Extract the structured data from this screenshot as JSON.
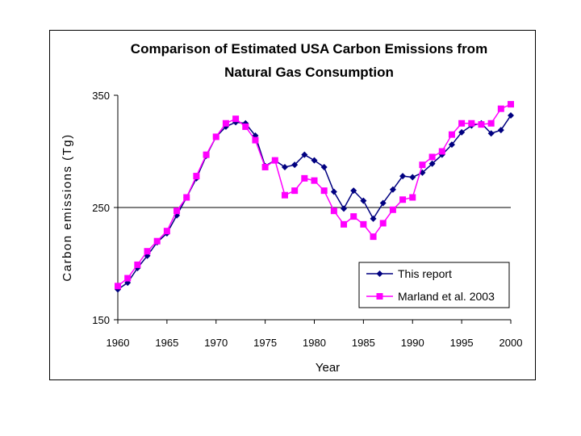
{
  "chart_data": {
    "type": "line",
    "title": [
      "Comparison of Estimated USA Carbon Emissions from",
      "Natural Gas Consumption"
    ],
    "xlabel": "Year",
    "ylabel": "Carbon emissions (Tg)",
    "xlim": [
      1960,
      2000
    ],
    "ylim": [
      150,
      350
    ],
    "x_ticks": [
      1960,
      1965,
      1970,
      1975,
      1980,
      1985,
      1990,
      1995,
      2000
    ],
    "y_ticks": [
      150,
      250,
      350
    ],
    "grid": {
      "horizontal": [
        250
      ]
    },
    "legend_position": "bottom-right",
    "x": [
      1960,
      1961,
      1962,
      1963,
      1964,
      1965,
      1966,
      1967,
      1968,
      1969,
      1970,
      1971,
      1972,
      1973,
      1974,
      1975,
      1976,
      1977,
      1978,
      1979,
      1980,
      1981,
      1982,
      1983,
      1984,
      1985,
      1986,
      1987,
      1988,
      1989,
      1990,
      1991,
      1992,
      1993,
      1994,
      1995,
      1996,
      1997,
      1998,
      1999,
      2000
    ],
    "series": [
      {
        "name": "This report",
        "color": "#000080",
        "marker": "diamond",
        "values": [
          177,
          183,
          196,
          207,
          219,
          227,
          243,
          259,
          276,
          296,
          313,
          322,
          326,
          325,
          314,
          287,
          292,
          286,
          288,
          297,
          292,
          286,
          264,
          249,
          265,
          256,
          240,
          254,
          266,
          278,
          277,
          281,
          289,
          297,
          306,
          317,
          323,
          325,
          316,
          319,
          332
        ]
      },
      {
        "name": "Marland et al. 2003",
        "color": "#ff00ff",
        "marker": "square",
        "values": [
          180,
          187,
          199,
          211,
          220,
          229,
          247,
          259,
          278,
          297,
          313,
          325,
          329,
          322,
          310,
          286,
          292,
          261,
          265,
          276,
          274,
          265,
          247,
          235,
          242,
          235,
          224,
          236,
          248,
          257,
          259,
          288,
          295,
          300,
          315,
          325,
          325,
          324,
          325,
          338,
          342
        ]
      }
    ]
  }
}
